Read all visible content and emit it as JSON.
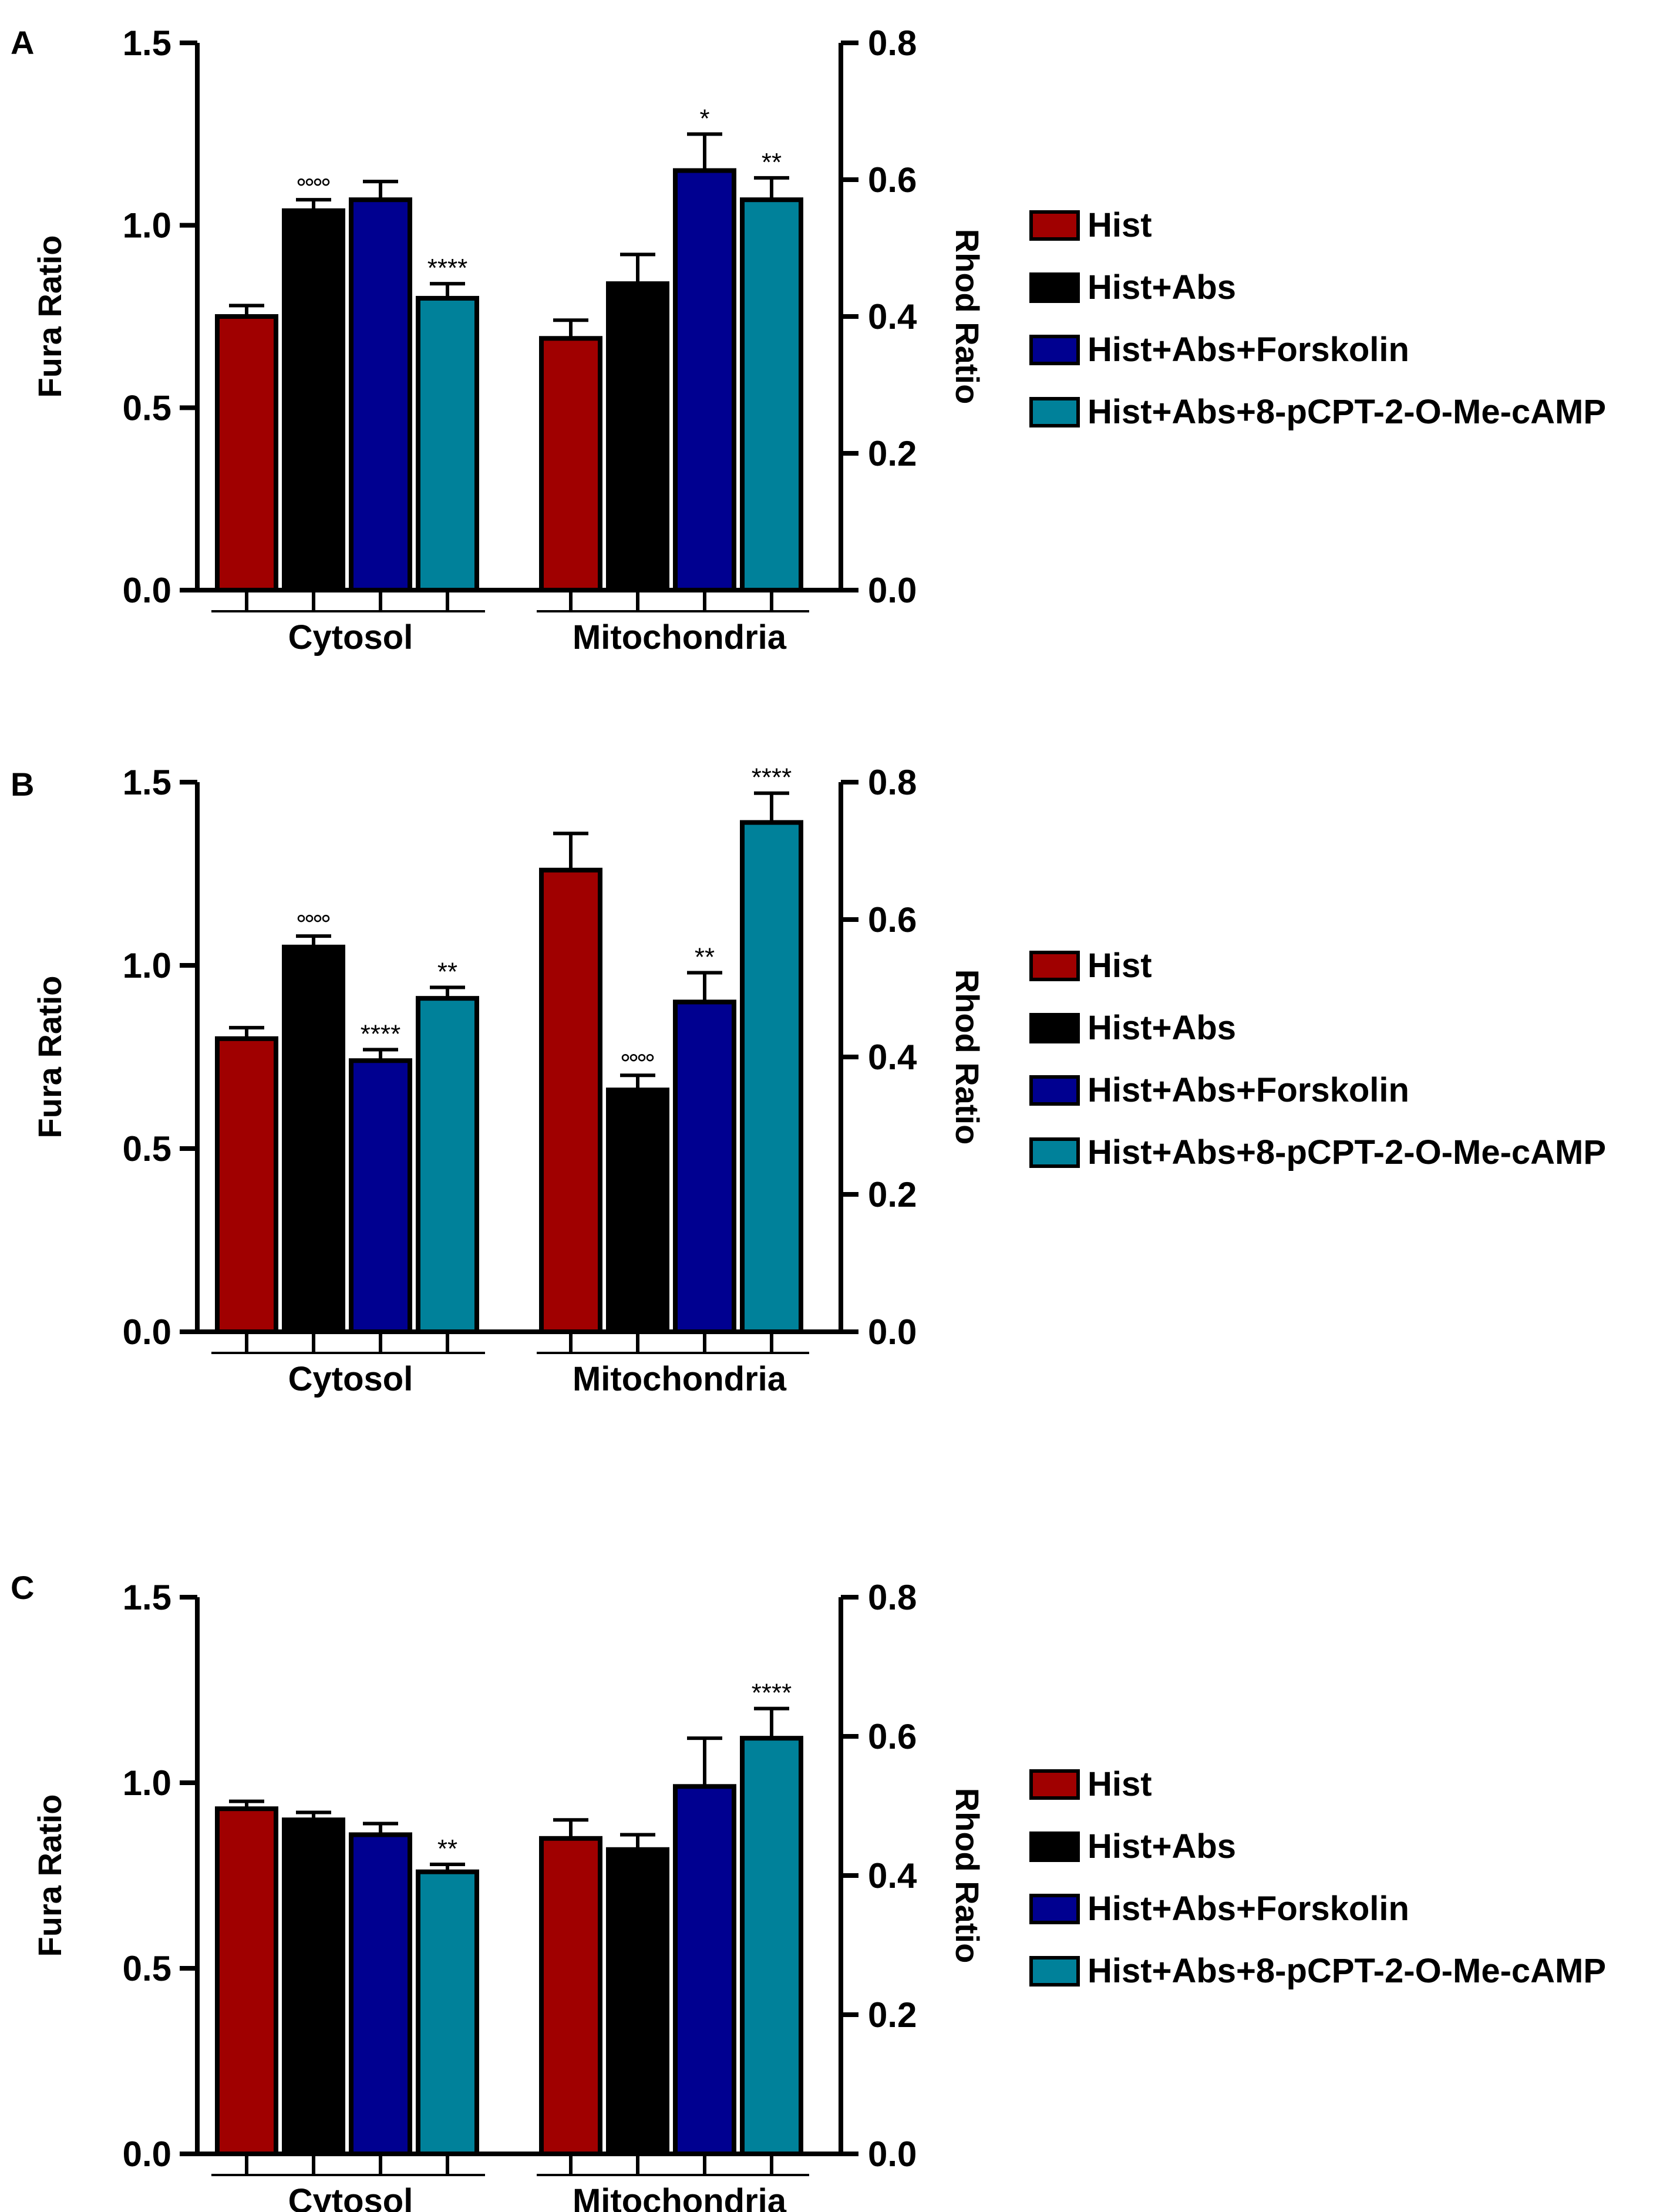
{
  "legend_colors": {
    "Hist": "#a00000",
    "Hist+Abs": "#000000",
    "Hist+Abs+Forskolin": "#000090",
    "Hist+Abs+8-pCPT-2-O-Me-cAMP": "#00819a"
  },
  "chart_data": [
    {
      "panel_letter": "A",
      "type": "bar",
      "categories": [
        "Cytosol",
        "Mitochondria"
      ],
      "ylabel": "Fura Ratio",
      "y2label": "Rhod Ratio",
      "ylim": [
        0,
        1.5
      ],
      "y2lim": [
        0,
        0.8
      ],
      "yticks": [
        "0.0",
        "0.5",
        "1.0",
        "1.5"
      ],
      "y2ticks": [
        "0.0",
        "0.2",
        "0.4",
        "0.6",
        "0.8"
      ],
      "series": [
        {
          "name": "Hist",
          "color": "#a00000",
          "values": [
            0.75,
            0.69
          ],
          "errors": [
            0.03,
            0.05
          ],
          "annotations": [
            "",
            ""
          ]
        },
        {
          "name": "Hist+Abs",
          "color": "#000000",
          "values": [
            1.04,
            0.84
          ],
          "errors": [
            0.03,
            0.08
          ],
          "annotations": [
            "oooo",
            ""
          ]
        },
        {
          "name": "Hist+Abs+Forskolin",
          "color": "#000090",
          "values": [
            1.07,
            1.15
          ],
          "errors": [
            0.05,
            0.1
          ],
          "annotations": [
            "",
            "*"
          ]
        },
        {
          "name": "Hist+Abs+8-pCPT-2-O-Me-cAMP",
          "color": "#00819a",
          "values": [
            0.8,
            1.07
          ],
          "errors": [
            0.04,
            0.06
          ],
          "annotations": [
            "****",
            "**"
          ]
        }
      ]
    },
    {
      "panel_letter": "B",
      "type": "bar",
      "categories": [
        "Cytosol",
        "Mitochondria"
      ],
      "ylabel": "Fura Ratio",
      "y2label": "Rhod Ratio",
      "ylim": [
        0,
        1.5
      ],
      "y2lim": [
        0,
        0.8
      ],
      "yticks": [
        "0.0",
        "0.5",
        "1.0",
        "1.5"
      ],
      "y2ticks": [
        "0.0",
        "0.2",
        "0.4",
        "0.6",
        "0.8"
      ],
      "series": [
        {
          "name": "Hist",
          "color": "#a00000",
          "values": [
            0.8,
            1.26
          ],
          "errors": [
            0.03,
            0.1
          ],
          "annotations": [
            "",
            ""
          ]
        },
        {
          "name": "Hist+Abs",
          "color": "#000000",
          "values": [
            1.05,
            0.66
          ],
          "errors": [
            0.03,
            0.04
          ],
          "annotations": [
            "oooo",
            "oooo"
          ]
        },
        {
          "name": "Hist+Abs+Forskolin",
          "color": "#000090",
          "values": [
            0.74,
            0.9
          ],
          "errors": [
            0.03,
            0.08
          ],
          "annotations": [
            "****",
            "**"
          ]
        },
        {
          "name": "Hist+Abs+8-pCPT-2-O-Me-cAMP",
          "color": "#00819a",
          "values": [
            0.91,
            1.39
          ],
          "errors": [
            0.03,
            0.08
          ],
          "annotations": [
            "**",
            "****"
          ]
        }
      ]
    },
    {
      "panel_letter": "C",
      "type": "bar",
      "categories": [
        "Cytosol",
        "Mitochondria"
      ],
      "ylabel": "Fura Ratio",
      "y2label": "Rhod Ratio",
      "ylim": [
        0,
        1.5
      ],
      "y2lim": [
        0,
        0.8
      ],
      "yticks": [
        "0.0",
        "0.5",
        "1.0",
        "1.5"
      ],
      "y2ticks": [
        "0.0",
        "0.2",
        "0.4",
        "0.6",
        "0.8"
      ],
      "series": [
        {
          "name": "Hist",
          "color": "#a00000",
          "values": [
            0.93,
            0.85
          ],
          "errors": [
            0.02,
            0.05
          ],
          "annotations": [
            "",
            ""
          ]
        },
        {
          "name": "Hist+Abs",
          "color": "#000000",
          "values": [
            0.9,
            0.82
          ],
          "errors": [
            0.02,
            0.04
          ],
          "annotations": [
            "",
            ""
          ]
        },
        {
          "name": "Hist+Abs+Forskolin",
          "color": "#000090",
          "values": [
            0.86,
            0.99
          ],
          "errors": [
            0.03,
            0.13
          ],
          "annotations": [
            "",
            ""
          ]
        },
        {
          "name": "Hist+Abs+8-pCPT-2-O-Me-cAMP",
          "color": "#00819a",
          "values": [
            0.76,
            1.12
          ],
          "errors": [
            0.02,
            0.08
          ],
          "annotations": [
            "**",
            "****"
          ]
        }
      ]
    }
  ]
}
